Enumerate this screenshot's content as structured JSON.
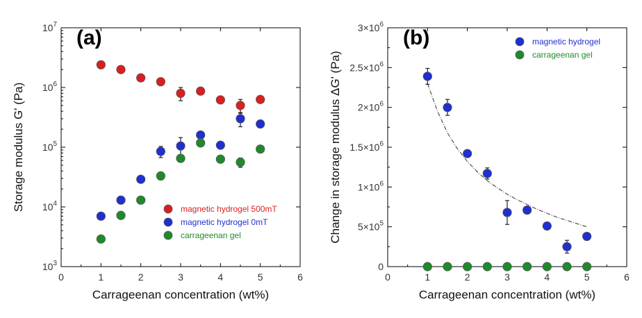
{
  "colors": {
    "red": "#d91f1f",
    "blue": "#1f2fd0",
    "green": "#1f8a2a",
    "errorbar": "#222222"
  },
  "chart_data": [
    {
      "type": "scatter",
      "panel_label": "(a)",
      "xlabel": "Carrageenan concentration (wt%)",
      "ylabel": "Storage modulus G' (Pa)",
      "xlim": [
        0,
        6
      ],
      "ylim": [
        1000,
        10000000
      ],
      "yscale": "log",
      "xticks": [
        "0",
        "1",
        "2",
        "3",
        "4",
        "5",
        "6"
      ],
      "yticks": [
        {
          "base": "10",
          "exp": "3"
        },
        {
          "base": "10",
          "exp": "4"
        },
        {
          "base": "10",
          "exp": "5"
        },
        {
          "base": "10",
          "exp": "6"
        },
        {
          "base": "10",
          "exp": "7"
        }
      ],
      "legend_position": "lower-right",
      "series": [
        {
          "name": "magnetic hydrogel 500mT",
          "color": "#d91f1f",
          "x": [
            1,
            1.5,
            2,
            2.5,
            3,
            3.5,
            4,
            4.5,
            5
          ],
          "y": [
            2400000,
            2000000,
            1450000,
            1250000,
            800000,
            870000,
            620000,
            500000,
            630000
          ],
          "err": [
            150000,
            120000,
            100000,
            100000,
            200000,
            60000,
            60000,
            130000,
            60000
          ]
        },
        {
          "name": "magnetic hydrogel 0mT",
          "color": "#1f2fd0",
          "x": [
            1,
            1.5,
            2,
            2.5,
            3,
            3.5,
            4,
            4.5,
            5
          ],
          "y": [
            7000,
            13000,
            29000,
            85000,
            105000,
            160000,
            108000,
            300000,
            245000
          ],
          "err": [
            500,
            1000,
            2000,
            18000,
            40000,
            12000,
            15000,
            80000,
            20000
          ]
        },
        {
          "name": "carrageenan gel",
          "color": "#1f8a2a",
          "x": [
            1,
            1.5,
            2,
            2.5,
            3,
            3.5,
            4,
            4.5,
            5
          ],
          "y": [
            2900,
            7200,
            13000,
            33000,
            65000,
            118000,
            63000,
            56000,
            93000
          ],
          "err": [
            200,
            800,
            1000,
            2000,
            8000,
            10000,
            5000,
            10000,
            6000
          ]
        }
      ]
    },
    {
      "type": "scatter",
      "panel_label": "(b)",
      "xlabel": "Carrageenan concentration (wt%)",
      "ylabel": "Change in storage modulus ΔG' (Pa)",
      "xlim": [
        0,
        6
      ],
      "ylim": [
        0,
        3000000
      ],
      "yscale": "linear",
      "xticks": [
        "0",
        "1",
        "2",
        "3",
        "4",
        "5",
        "6"
      ],
      "yticks": [
        {
          "base": "0",
          "exp": ""
        },
        {
          "base": "5×10",
          "exp": "5"
        },
        {
          "base": "1×10",
          "exp": "6"
        },
        {
          "base": "1.5×10",
          "exp": "6"
        },
        {
          "base": "2×10",
          "exp": "6"
        },
        {
          "base": "2.5×10",
          "exp": "6"
        },
        {
          "base": "3×10",
          "exp": "6"
        }
      ],
      "legend_position": "top-right",
      "series": [
        {
          "name": "magnetic hydrogel",
          "color": "#1f2fd0",
          "x": [
            1,
            1.5,
            2,
            2.5,
            3,
            3.5,
            4,
            4.5,
            5
          ],
          "y": [
            2390000,
            2000000,
            1420000,
            1170000,
            680000,
            710000,
            510000,
            250000,
            380000
          ],
          "err": [
            100000,
            100000,
            40000,
            70000,
            150000,
            30000,
            30000,
            80000,
            40000
          ]
        },
        {
          "name": "carrageenan gel",
          "color": "#1f8a2a",
          "x": [
            1,
            1.5,
            2,
            2.5,
            3,
            3.5,
            4,
            4.5,
            5
          ],
          "y": [
            0,
            0,
            0,
            0,
            0,
            0,
            0,
            0,
            0
          ],
          "err": [
            0,
            0,
            0,
            0,
            0,
            0,
            0,
            0,
            0
          ]
        }
      ],
      "fit_curve": {
        "x": [
          1,
          1.25,
          1.5,
          1.75,
          2,
          2.25,
          2.5,
          2.75,
          3,
          3.25,
          3.5,
          3.75,
          4,
          4.25,
          4.5,
          4.75,
          5
        ],
        "y": [
          2300000,
          1950000,
          1680000,
          1480000,
          1320000,
          1190000,
          1080000,
          990000,
          910000,
          840000,
          780000,
          720000,
          670000,
          620000,
          580000,
          540000,
          500000
        ]
      }
    }
  ]
}
